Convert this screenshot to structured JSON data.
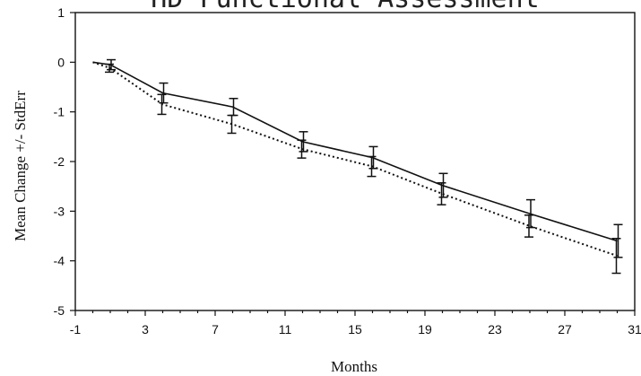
{
  "chart_data": {
    "type": "line",
    "title": "HD Functional Assessment",
    "xlabel": "Months",
    "ylabel": "Mean Change +/- StdErr",
    "xlim": [
      -1,
      31
    ],
    "ylim": [
      -5,
      1
    ],
    "xticks": [
      -1,
      3,
      7,
      11,
      15,
      19,
      23,
      27,
      31
    ],
    "yticks": [
      1,
      0,
      -1,
      -2,
      -3,
      -4,
      -5
    ],
    "grid": false,
    "series": [
      {
        "style": "solid",
        "points": [
          {
            "x": 0,
            "y": 0,
            "err": 0
          },
          {
            "x": 1,
            "y": -0.05,
            "err": 0.1
          },
          {
            "x": 4,
            "y": -0.62,
            "err": 0.2
          },
          {
            "x": 8,
            "y": -0.9,
            "err": 0.17
          },
          {
            "x": 12,
            "y": -1.6,
            "err": 0.2
          },
          {
            "x": 16,
            "y": -1.92,
            "err": 0.22
          },
          {
            "x": 20,
            "y": -2.48,
            "err": 0.24
          },
          {
            "x": 25,
            "y": -3.05,
            "err": 0.28
          },
          {
            "x": 30,
            "y": -3.6,
            "err": 0.33
          }
        ]
      },
      {
        "style": "dotted",
        "points": [
          {
            "x": 0,
            "y": 0,
            "err": 0
          },
          {
            "x": 1,
            "y": -0.12,
            "err": 0.08
          },
          {
            "x": 4,
            "y": -0.85,
            "err": 0.2
          },
          {
            "x": 8,
            "y": -1.25,
            "err": 0.18
          },
          {
            "x": 12,
            "y": -1.75,
            "err": 0.18
          },
          {
            "x": 16,
            "y": -2.1,
            "err": 0.2
          },
          {
            "x": 20,
            "y": -2.65,
            "err": 0.22
          },
          {
            "x": 25,
            "y": -3.3,
            "err": 0.22
          },
          {
            "x": 30,
            "y": -3.9,
            "err": 0.35
          }
        ]
      }
    ]
  }
}
